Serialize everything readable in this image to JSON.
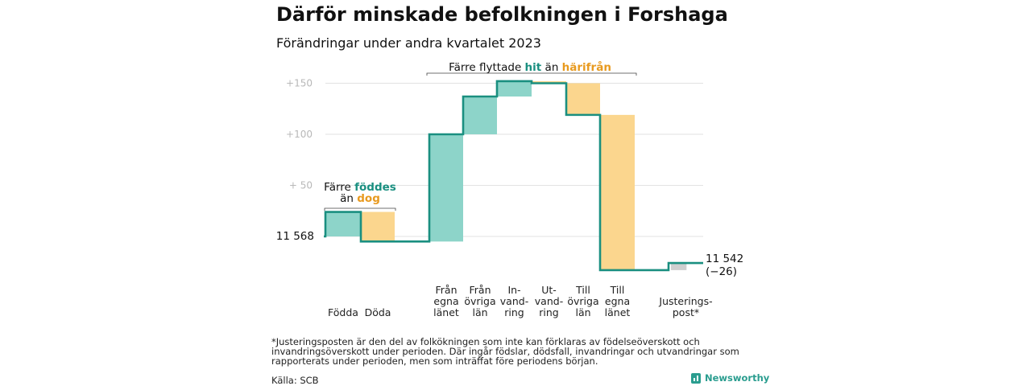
{
  "title": "Därför minskade befolkningen i Forshaga",
  "subtitle": "Förändringar under andra kvartalet 2023",
  "footnote": "*Justeringsposten är den del av folkökningen som inte kan förklaras av födelseöverskott och invandringsöverskott under perioden. Där ingår födslar, dödsfall, invandringar och utvandringar som rapporterats under perioden, men som inträffat före periodens början.",
  "source": "Källa: SCB",
  "brand": "Newsworthy",
  "colors": {
    "increase": "#8dd4c9",
    "decrease": "#fbd68e",
    "adjustment": "#cfcfcf",
    "line": "#1a8f80",
    "teal_text": "#1a8f80",
    "orange_text": "#e89a1f",
    "grid": "#e2e2e2",
    "tick": "#b8b8b8"
  },
  "chart_data": {
    "type": "waterfall",
    "start_value": 11568,
    "start_label": "11  568",
    "end_label_value": "11 542",
    "end_label_change": "(−26)",
    "ylim": [
      -20,
      165
    ],
    "yticks": [
      {
        "value": 50,
        "label": "+  50"
      },
      {
        "value": 100,
        "label": "+100"
      },
      {
        "value": 150,
        "label": "+150"
      }
    ],
    "steps": [
      {
        "label_lines": [
          "Födda"
        ],
        "delta": 24
      },
      {
        "label_lines": [
          "Döda"
        ],
        "delta": -29
      },
      {
        "label_lines": [
          "Från",
          "egna",
          "länet"
        ],
        "delta": 105
      },
      {
        "label_lines": [
          "Från",
          "övriga",
          "län"
        ],
        "delta": 37
      },
      {
        "label_lines": [
          "In-",
          "vand-",
          "ring"
        ],
        "delta": 15
      },
      {
        "label_lines": [
          "Ut-",
          "vand-",
          "ring"
        ],
        "delta": -2
      },
      {
        "label_lines": [
          "Till",
          "övriga",
          "län"
        ],
        "delta": -31
      },
      {
        "label_lines": [
          "Till",
          "egna",
          "länet"
        ],
        "delta": -152
      },
      {
        "label_lines": [
          "Justerings-",
          "post*"
        ],
        "delta": 7
      }
    ],
    "annotations": [
      {
        "lines": [
          [
            {
              "text": "Färre ",
              "color": "default"
            },
            {
              "text": "föddes",
              "color": "teal"
            }
          ],
          [
            {
              "text": "än ",
              "color": "default"
            },
            {
              "text": "dog",
              "color": "orange"
            }
          ]
        ]
      },
      {
        "lines": [
          [
            {
              "text": "Färre flyttade ",
              "color": "default"
            },
            {
              "text": "hit",
              "color": "teal"
            },
            {
              "text": "  än ",
              "color": "default"
            },
            {
              "text": "härifrån",
              "color": "orange"
            }
          ]
        ]
      }
    ]
  }
}
